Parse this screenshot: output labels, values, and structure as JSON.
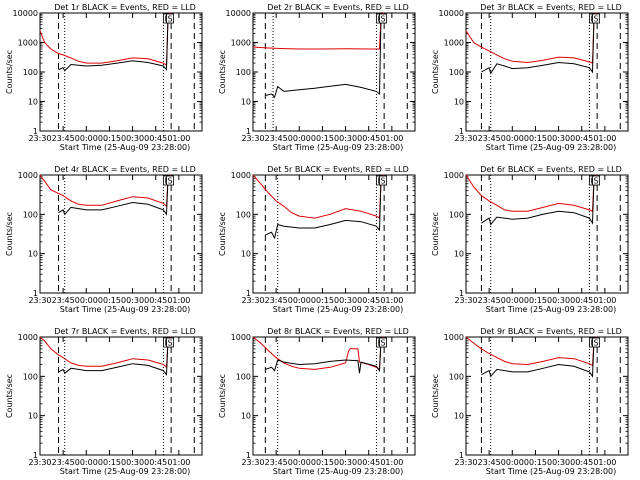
{
  "figure": {
    "background": "#ffffff",
    "colors": {
      "events": "#000000",
      "lld": "#e00000",
      "axes": "#000000"
    }
  },
  "chart_data": [
    {
      "type": "line",
      "title": "Det 1r BLACK = Events, RED = LLD",
      "xlabel": "Start Time (25-Aug-09 23:28:00)",
      "ylabel": "Counts/sec",
      "y_scale": "log",
      "ylim": [
        1,
        10000
      ],
      "yticks": [
        "1",
        "10",
        "100",
        "1000",
        "10000"
      ],
      "xlim": [
        "23:30",
        "01:15"
      ],
      "xticks": [
        "23:30",
        "23:45",
        "00:00",
        "00:15",
        "00:30",
        "00:45",
        "01:00"
      ],
      "markers": [
        {
          "label": "E",
          "time": "00:52"
        },
        {
          "label": "S",
          "time": "00:54"
        }
      ],
      "vlines_dashed": [
        "23:42",
        "00:55",
        "01:10"
      ],
      "vlines_dotted": [
        "23:46",
        "00:50"
      ],
      "series": [
        {
          "name": "LLD",
          "x": [
            "23:30",
            "23:33",
            "23:37",
            "23:42",
            "23:45",
            "23:50",
            "23:55",
            "00:00",
            "00:10",
            "00:20",
            "00:30",
            "00:40",
            "00:50",
            "00:52",
            "00:53",
            "00:55"
          ],
          "y": [
            2500,
            1000,
            600,
            420,
            380,
            300,
            230,
            200,
            200,
            240,
            300,
            280,
            200,
            170,
            9000,
            10000
          ]
        },
        {
          "name": "Events",
          "x": [
            "23:42",
            "23:45",
            "23:46",
            "23:50",
            "23:55",
            "00:00",
            "00:10",
            "00:20",
            "00:30",
            "00:40",
            "00:50",
            "00:52",
            "00:53"
          ],
          "y": [
            120,
            140,
            110,
            180,
            170,
            160,
            170,
            200,
            240,
            210,
            160,
            120,
            9000
          ]
        }
      ]
    },
    {
      "type": "line",
      "title": "Det 2r BLACK = Events, RED = LLD",
      "xlabel": "Start Time (25-Aug-09 23:28:00)",
      "ylabel": "Counts/sec",
      "y_scale": "log",
      "ylim": [
        1,
        10000
      ],
      "yticks": [
        "1",
        "10",
        "100",
        "1000",
        "10000"
      ],
      "xlim": [
        "23:30",
        "01:15"
      ],
      "xticks": [
        "23:30",
        "23:45",
        "00:00",
        "00:15",
        "00:30",
        "00:45",
        "01:00"
      ],
      "markers": [
        {
          "label": "E",
          "time": "00:52"
        },
        {
          "label": "S",
          "time": "00:54"
        }
      ],
      "vlines_dashed": [
        "23:38",
        "00:55",
        "01:10"
      ],
      "vlines_dotted": [
        "23:43",
        "00:50"
      ],
      "series": [
        {
          "name": "LLD",
          "x": [
            "23:30",
            "23:40",
            "23:50",
            "00:00",
            "00:15",
            "00:30",
            "00:45",
            "00:52",
            "00:53",
            "00:55"
          ],
          "y": [
            700,
            650,
            620,
            600,
            600,
            610,
            600,
            600,
            9000,
            10000
          ]
        },
        {
          "name": "Events",
          "x": [
            "23:38",
            "23:42",
            "23:44",
            "23:46",
            "23:50",
            "00:00",
            "00:10",
            "00:20",
            "00:30",
            "00:40",
            "00:50",
            "00:52",
            "00:53"
          ],
          "y": [
            16,
            18,
            14,
            32,
            22,
            25,
            28,
            33,
            38,
            30,
            22,
            18,
            9000
          ]
        }
      ]
    },
    {
      "type": "line",
      "title": "Det 3r BLACK = Events, RED = LLD",
      "xlabel": "Start Time (25-Aug-09 23:28:00)",
      "ylabel": "Counts/sec",
      "y_scale": "log",
      "ylim": [
        1,
        10000
      ],
      "yticks": [
        "1",
        "10",
        "100",
        "1000",
        "10000"
      ],
      "xlim": [
        "23:30",
        "01:15"
      ],
      "xticks": [
        "23:30",
        "23:45",
        "00:00",
        "00:15",
        "00:30",
        "00:45",
        "01:00"
      ],
      "markers": [
        {
          "label": "E",
          "time": "00:52"
        },
        {
          "label": "S",
          "time": "00:54"
        }
      ],
      "vlines_dashed": [
        "23:40",
        "00:55",
        "01:10"
      ],
      "vlines_dotted": [
        "23:46",
        "00:50"
      ],
      "series": [
        {
          "name": "LLD",
          "x": [
            "23:30",
            "23:35",
            "23:40",
            "23:45",
            "23:50",
            "23:55",
            "00:00",
            "00:10",
            "00:20",
            "00:30",
            "00:40",
            "00:50",
            "00:52",
            "00:53",
            "00:55"
          ],
          "y": [
            2500,
            1000,
            700,
            520,
            380,
            280,
            230,
            210,
            250,
            320,
            300,
            220,
            200,
            9000,
            10000
          ]
        },
        {
          "name": "Events",
          "x": [
            "23:40",
            "23:45",
            "23:46",
            "23:50",
            "23:55",
            "00:00",
            "00:10",
            "00:20",
            "00:30",
            "00:40",
            "00:50",
            "00:52",
            "00:53"
          ],
          "y": [
            100,
            140,
            90,
            190,
            160,
            130,
            140,
            170,
            210,
            190,
            140,
            100,
            9000
          ]
        }
      ]
    },
    {
      "type": "line",
      "title": "Det 4r BLACK = Events, RED = LLD",
      "xlabel": "Start Time (25-Aug-09 23:28:00)",
      "ylabel": "Counts/sec",
      "y_scale": "log",
      "ylim": [
        1,
        1000
      ],
      "yticks": [
        "1",
        "10",
        "100",
        "1000"
      ],
      "xlim": [
        "23:30",
        "01:15"
      ],
      "xticks": [
        "23:30",
        "23:45",
        "00:00",
        "00:15",
        "00:30",
        "00:45",
        "01:00"
      ],
      "markers": [
        {
          "label": "E",
          "time": "00:52"
        },
        {
          "label": "S",
          "time": "00:54"
        }
      ],
      "vlines_dashed": [
        "23:42",
        "00:55",
        "01:10"
      ],
      "vlines_dotted": [
        "23:46",
        "00:50"
      ],
      "series": [
        {
          "name": "LLD",
          "x": [
            "23:30",
            "23:33",
            "23:37",
            "23:42",
            "23:45",
            "23:50",
            "23:55",
            "00:00",
            "00:10",
            "00:20",
            "00:30",
            "00:40",
            "00:50",
            "00:52",
            "00:53",
            "00:55"
          ],
          "y": [
            1000,
            700,
            420,
            340,
            300,
            220,
            180,
            170,
            170,
            220,
            280,
            260,
            190,
            160,
            900,
            1000
          ]
        },
        {
          "name": "Events",
          "x": [
            "23:42",
            "23:45",
            "23:46",
            "23:50",
            "23:55",
            "00:00",
            "00:10",
            "00:20",
            "00:30",
            "00:40",
            "00:50",
            "00:52",
            "00:53"
          ],
          "y": [
            110,
            130,
            100,
            150,
            140,
            130,
            130,
            160,
            200,
            180,
            130,
            100,
            900
          ]
        }
      ]
    },
    {
      "type": "line",
      "title": "Det 5r BLACK = Events, RED = LLD",
      "xlabel": "Start Time (25-Aug-09 23:28:00)",
      "ylabel": "Counts/sec",
      "y_scale": "log",
      "ylim": [
        1,
        1000
      ],
      "yticks": [
        "1",
        "10",
        "100",
        "1000"
      ],
      "xlim": [
        "23:30",
        "01:15"
      ],
      "xticks": [
        "23:30",
        "23:45",
        "00:00",
        "00:15",
        "00:30",
        "00:45",
        "01:00"
      ],
      "markers": [
        {
          "label": "E",
          "time": "00:52"
        },
        {
          "label": "S",
          "time": "00:54"
        }
      ],
      "vlines_dashed": [
        "23:38",
        "00:55",
        "01:10"
      ],
      "vlines_dotted": [
        "23:46",
        "00:50"
      ],
      "series": [
        {
          "name": "LLD",
          "x": [
            "23:30",
            "23:35",
            "23:40",
            "23:45",
            "23:50",
            "23:55",
            "00:00",
            "00:10",
            "00:20",
            "00:30",
            "00:40",
            "00:50",
            "00:52",
            "00:53",
            "00:55"
          ],
          "y": [
            1000,
            600,
            350,
            220,
            160,
            110,
            90,
            80,
            100,
            140,
            120,
            90,
            80,
            900,
            1000
          ]
        },
        {
          "name": "Events",
          "x": [
            "23:38",
            "23:42",
            "23:44",
            "23:46",
            "23:50",
            "00:00",
            "00:10",
            "00:20",
            "00:30",
            "00:40",
            "00:50",
            "00:52",
            "00:53"
          ],
          "y": [
            30,
            35,
            25,
            55,
            50,
            45,
            45,
            55,
            70,
            65,
            50,
            40,
            900
          ]
        }
      ]
    },
    {
      "type": "line",
      "title": "Det 6r BLACK = Events, RED = LLD",
      "xlabel": "Start Time (25-Aug-09 23:28:00)",
      "ylabel": "Counts/sec",
      "y_scale": "log",
      "ylim": [
        1,
        1000
      ],
      "yticks": [
        "1",
        "10",
        "100",
        "1000"
      ],
      "xlim": [
        "23:30",
        "01:15"
      ],
      "xticks": [
        "23:30",
        "23:45",
        "00:00",
        "00:15",
        "00:30",
        "00:45",
        "01:00"
      ],
      "markers": [
        {
          "label": "E",
          "time": "00:52"
        },
        {
          "label": "S",
          "time": "00:54"
        }
      ],
      "vlines_dashed": [
        "23:40",
        "00:55",
        "01:10"
      ],
      "vlines_dotted": [
        "23:46",
        "00:50"
      ],
      "series": [
        {
          "name": "LLD",
          "x": [
            "23:30",
            "23:35",
            "23:40",
            "23:45",
            "23:50",
            "23:55",
            "00:00",
            "00:10",
            "00:20",
            "00:30",
            "00:40",
            "00:50",
            "00:52",
            "00:53",
            "00:55"
          ],
          "y": [
            1000,
            500,
            300,
            220,
            170,
            130,
            120,
            120,
            150,
            190,
            170,
            130,
            120,
            900,
            1000
          ]
        },
        {
          "name": "Events",
          "x": [
            "23:40",
            "23:45",
            "23:46",
            "23:50",
            "23:55",
            "00:00",
            "00:10",
            "00:20",
            "00:30",
            "00:40",
            "00:50",
            "00:52",
            "00:53"
          ],
          "y": [
            60,
            80,
            55,
            85,
            80,
            75,
            80,
            100,
            120,
            110,
            80,
            60,
            900
          ]
        }
      ]
    },
    {
      "type": "line",
      "title": "Det 7r BLACK = Events, RED = LLD",
      "xlabel": "Start Time (25-Aug-09 23:28:00)",
      "ylabel": "Counts/sec",
      "y_scale": "log",
      "ylim": [
        1,
        1000
      ],
      "yticks": [
        "1",
        "10",
        "100",
        "1000"
      ],
      "xlim": [
        "23:30",
        "01:15"
      ],
      "xticks": [
        "23:30",
        "23:45",
        "00:00",
        "00:15",
        "00:30",
        "00:45",
        "01:00"
      ],
      "markers": [
        {
          "label": "E",
          "time": "00:52"
        },
        {
          "label": "S",
          "time": "00:54"
        }
      ],
      "vlines_dashed": [
        "23:42",
        "00:55",
        "01:10"
      ],
      "vlines_dotted": [
        "23:46",
        "00:50"
      ],
      "series": [
        {
          "name": "LLD",
          "x": [
            "23:30",
            "23:33",
            "23:37",
            "23:42",
            "23:45",
            "23:50",
            "23:55",
            "00:00",
            "00:10",
            "00:20",
            "00:30",
            "00:40",
            "00:50",
            "00:52",
            "00:53",
            "00:55"
          ],
          "y": [
            1000,
            800,
            500,
            350,
            300,
            220,
            190,
            180,
            180,
            220,
            280,
            260,
            200,
            170,
            900,
            1000
          ]
        },
        {
          "name": "Events",
          "x": [
            "23:42",
            "23:45",
            "23:46",
            "23:50",
            "23:55",
            "00:00",
            "00:10",
            "00:20",
            "00:30",
            "00:40",
            "00:50",
            "00:52",
            "00:53"
          ],
          "y": [
            130,
            150,
            120,
            160,
            150,
            140,
            140,
            170,
            210,
            190,
            140,
            110,
            900
          ]
        }
      ]
    },
    {
      "type": "line",
      "title": "Det 8r BLACK = Events, RED = LLD",
      "xlabel": "Start Time (25-Aug-09 23:28:00)",
      "ylabel": "Counts/sec",
      "y_scale": "log",
      "ylim": [
        1,
        1000
      ],
      "yticks": [
        "1",
        "10",
        "100",
        "1000"
      ],
      "xlim": [
        "23:30",
        "01:15"
      ],
      "xticks": [
        "23:30",
        "23:45",
        "00:00",
        "00:15",
        "00:30",
        "00:45",
        "01:00"
      ],
      "markers": [
        {
          "label": "E",
          "time": "00:52"
        },
        {
          "label": "S",
          "time": "00:54"
        }
      ],
      "vlines_dashed": [
        "23:38",
        "00:55",
        "01:10"
      ],
      "vlines_dotted": [
        "23:46",
        "00:50"
      ],
      "series": [
        {
          "name": "LLD",
          "x": [
            "23:30",
            "23:35",
            "23:40",
            "23:45",
            "23:50",
            "23:55",
            "00:00",
            "00:10",
            "00:20",
            "00:30",
            "00:32",
            "00:33",
            "00:38",
            "00:39",
            "00:45",
            "00:50",
            "00:52",
            "00:53",
            "00:55"
          ],
          "y": [
            1000,
            700,
            450,
            300,
            220,
            180,
            160,
            150,
            170,
            220,
            450,
            500,
            500,
            230,
            200,
            170,
            150,
            900,
            1000
          ]
        },
        {
          "name": "Events",
          "x": [
            "23:38",
            "23:42",
            "23:44",
            "23:46",
            "23:50",
            "00:00",
            "00:10",
            "00:20",
            "00:30",
            "00:38",
            "00:39",
            "00:40",
            "00:50",
            "00:52",
            "00:53"
          ],
          "y": [
            150,
            170,
            140,
            260,
            230,
            200,
            210,
            240,
            260,
            250,
            120,
            230,
            180,
            140,
            900
          ]
        }
      ]
    },
    {
      "type": "line",
      "title": "Det 9r BLACK = Events, RED = LLD",
      "xlabel": "Start Time (25-Aug-09 23:28:00)",
      "ylabel": "Counts/sec",
      "y_scale": "log",
      "ylim": [
        1,
        1000
      ],
      "yticks": [
        "1",
        "10",
        "100",
        "1000"
      ],
      "xlim": [
        "23:30",
        "01:15"
      ],
      "xticks": [
        "23:30",
        "23:45",
        "00:00",
        "00:15",
        "00:30",
        "00:45",
        "01:00"
      ],
      "markers": [
        {
          "label": "E",
          "time": "00:52"
        },
        {
          "label": "S",
          "time": "00:54"
        }
      ],
      "vlines_dashed": [
        "23:40",
        "00:55",
        "01:10"
      ],
      "vlines_dotted": [
        "23:46",
        "00:50"
      ],
      "series": [
        {
          "name": "LLD",
          "x": [
            "23:30",
            "23:35",
            "23:40",
            "23:45",
            "23:50",
            "23:55",
            "00:00",
            "00:10",
            "00:20",
            "00:30",
            "00:40",
            "00:50",
            "00:52",
            "00:53",
            "00:55"
          ],
          "y": [
            1000,
            700,
            500,
            380,
            300,
            240,
            210,
            200,
            240,
            300,
            280,
            210,
            190,
            900,
            1000
          ]
        },
        {
          "name": "Events",
          "x": [
            "23:40",
            "23:45",
            "23:46",
            "23:50",
            "23:55",
            "00:00",
            "00:10",
            "00:20",
            "00:30",
            "00:40",
            "00:50",
            "00:52",
            "00:53"
          ],
          "y": [
            110,
            140,
            100,
            150,
            140,
            130,
            130,
            160,
            200,
            180,
            130,
            100,
            900
          ]
        }
      ]
    }
  ]
}
